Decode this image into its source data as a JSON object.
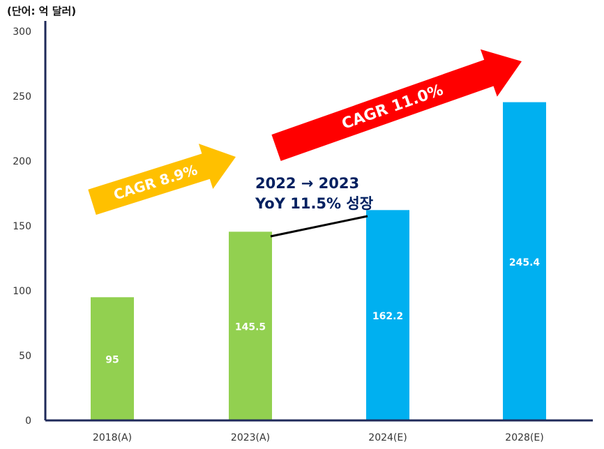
{
  "unit_label": "(단어: 억 달러)",
  "chart_data": {
    "type": "bar",
    "categories": [
      "2018(A)",
      "2023(A)",
      "2024(E)",
      "2028(E)"
    ],
    "values": [
      95,
      145.5,
      162.2,
      245.4
    ],
    "data_labels": [
      "95",
      "145.5",
      "162.2",
      "245.4"
    ],
    "bar_colors": [
      "#92d050",
      "#92d050",
      "#00b0f0",
      "#00b0f0"
    ],
    "ylim": [
      0,
      300
    ],
    "yticks": [
      0,
      50,
      100,
      150,
      200,
      250,
      300
    ],
    "grid": false,
    "legend": "none",
    "title": "",
    "xlabel": "",
    "ylabel": ""
  },
  "annotations": {
    "cagr_short": {
      "text": "CAGR 8.9%",
      "color": "#ffc000"
    },
    "cagr_long": {
      "text": "CAGR 11.0%",
      "color": "#ff0000"
    },
    "yoy_line1": "2022 → 2023",
    "yoy_line2": "YoY 11.5% 성장",
    "yoy_color": "#002060"
  },
  "colors": {
    "axis": "#1f2a5a",
    "data_label": "#ffffff",
    "tick_label": "#333333"
  }
}
